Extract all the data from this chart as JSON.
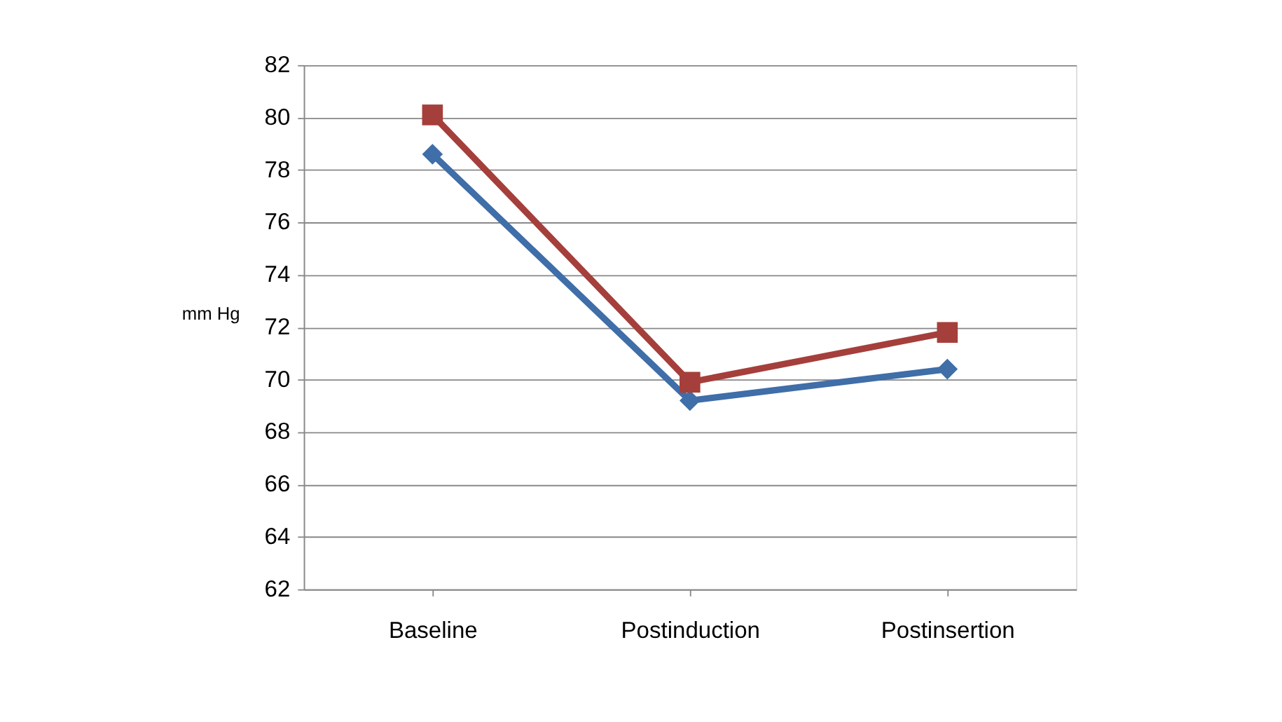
{
  "chart_data": {
    "type": "line",
    "ylabel": "mm Hg",
    "categories": [
      "Baseline",
      "Postinduction",
      "Postinsertion"
    ],
    "series": [
      {
        "color": "#3f6ea8",
        "marker": "diamond",
        "values": [
          78.6,
          69.2,
          70.4
        ]
      },
      {
        "color": "#a53f3b",
        "marker": "square",
        "values": [
          80.1,
          69.9,
          71.8
        ]
      }
    ],
    "ylim": [
      62,
      82
    ],
    "yticks": [
      62,
      64,
      66,
      68,
      70,
      72,
      74,
      76,
      78,
      80,
      82
    ],
    "grid": "y",
    "line_style": "solid"
  }
}
